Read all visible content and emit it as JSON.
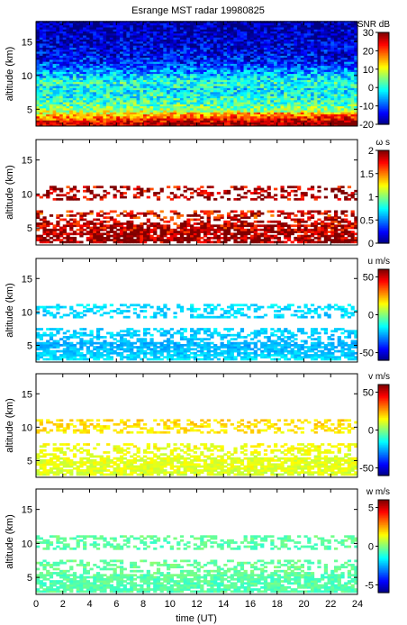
{
  "figure": {
    "title": "Esrange MST radar 19980825",
    "xlabel": "time (UT)",
    "x_ticks": [
      0,
      2,
      4,
      6,
      8,
      10,
      12,
      14,
      16,
      18,
      20,
      22,
      24
    ],
    "xlim": [
      0,
      24
    ]
  },
  "chart_data": [
    {
      "type": "heatmap",
      "panel": "snr",
      "ylabel": "altitude (km)",
      "ylim": [
        2.5,
        18
      ],
      "y_ticks": [
        5,
        10,
        15
      ],
      "colorbar": {
        "label": "SNR dB",
        "range": [
          -20,
          30
        ],
        "ticks": [
          -20,
          -10,
          0,
          10,
          20,
          30
        ]
      },
      "profile": {
        "altitude_km": [
          3,
          4,
          5,
          6,
          7,
          8,
          9,
          10,
          11,
          12,
          13,
          14,
          15,
          16,
          17,
          18
        ],
        "snr_db_approx": [
          25,
          15,
          6,
          2,
          0,
          -2,
          1,
          -4,
          -8,
          -12,
          -14,
          -15,
          -16,
          -17,
          -18,
          -18
        ]
      }
    },
    {
      "type": "heatmap",
      "panel": "width",
      "ylabel": "altitude (km)",
      "ylim": [
        2.5,
        18
      ],
      "y_ticks": [
        5,
        10,
        15
      ],
      "colorbar": {
        "label": "ω s",
        "range": [
          0,
          2
        ],
        "ticks": [
          0,
          0.5,
          1,
          1.5,
          2
        ]
      },
      "profile": {
        "altitude_km": [
          3,
          4,
          5,
          6,
          7,
          10,
          11
        ],
        "value_approx": [
          2,
          2,
          1.9,
          1.9,
          1.8,
          2,
          1.9
        ]
      }
    },
    {
      "type": "heatmap",
      "panel": "u",
      "ylabel": "altitude (km)",
      "ylim": [
        2.5,
        18
      ],
      "y_ticks": [
        5,
        10,
        15
      ],
      "colorbar": {
        "label": "u m/s",
        "range": [
          -60,
          60
        ],
        "ticks": [
          -50,
          0,
          50
        ]
      },
      "profile": {
        "altitude_km": [
          3,
          4,
          5,
          6,
          7,
          10,
          11
        ],
        "value_approx": [
          -18,
          -22,
          -24,
          -22,
          -20,
          -20,
          -18
        ]
      }
    },
    {
      "type": "heatmap",
      "panel": "v",
      "ylabel": "altitude (km)",
      "ylim": [
        2.5,
        18
      ],
      "y_ticks": [
        5,
        10,
        15
      ],
      "colorbar": {
        "label": "v m/s",
        "range": [
          -60,
          60
        ],
        "ticks": [
          -50,
          0,
          50
        ]
      },
      "profile": {
        "altitude_km": [
          3,
          4,
          5,
          6,
          7,
          10,
          11
        ],
        "value_approx": [
          10,
          12,
          12,
          12,
          14,
          18,
          20
        ]
      }
    },
    {
      "type": "heatmap",
      "panel": "w",
      "ylabel": "altitude (km)",
      "ylim": [
        2.5,
        18
      ],
      "y_ticks": [
        5,
        10,
        15
      ],
      "colorbar": {
        "label": "w m/s",
        "range": [
          -6,
          6
        ],
        "ticks": [
          -5,
          0,
          5
        ]
      },
      "profile": {
        "altitude_km": [
          3,
          4,
          5,
          6,
          7,
          10,
          11
        ],
        "value_approx": [
          -0.5,
          -0.5,
          -0.5,
          -0.3,
          -0.3,
          -0.5,
          -0.3
        ]
      }
    }
  ]
}
